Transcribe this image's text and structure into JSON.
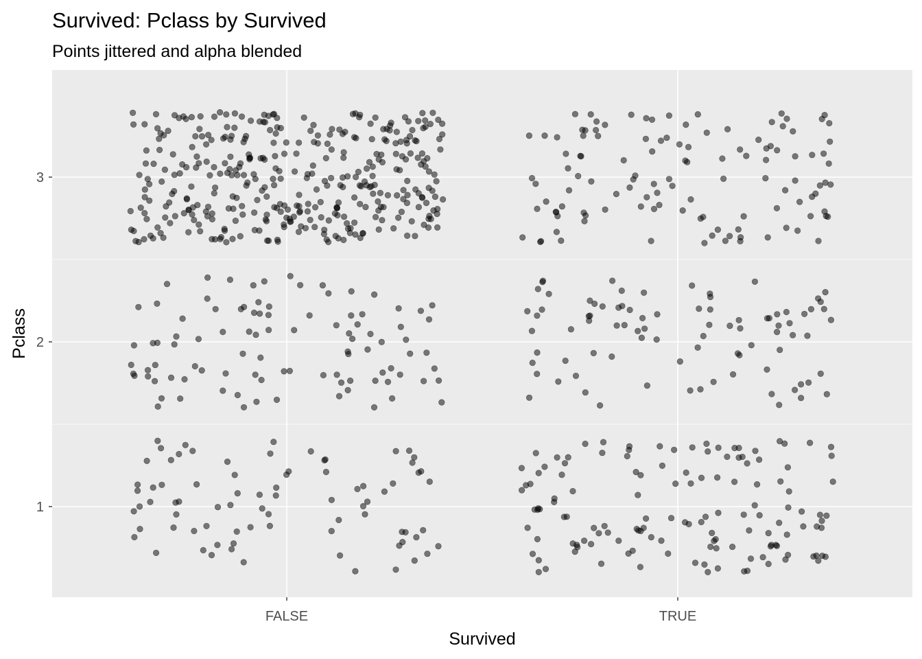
{
  "chart_data": {
    "type": "scatter",
    "title": "Survived: Pclass by Survived",
    "subtitle": "Points jittered and alpha blended",
    "xlabel": "Survived",
    "ylabel": "Pclass",
    "x_categories": [
      "FALSE",
      "TRUE"
    ],
    "y_ticks": [
      1,
      2,
      3
    ],
    "y_tick_labels": [
      "1",
      "2",
      "3"
    ],
    "ylim": [
      0.45,
      3.65
    ],
    "jitter_width": 0.4,
    "jitter_height": 0.4,
    "grid": true,
    "panel_background": "#EBEBEB",
    "grid_color": "#FFFFFF",
    "point_color": "#000000",
    "point_alpha": 0.5,
    "groups": [
      {
        "x": "FALSE",
        "y": 1,
        "count": 80
      },
      {
        "x": "FALSE",
        "y": 2,
        "count": 97
      },
      {
        "x": "FALSE",
        "y": 3,
        "count": 372
      },
      {
        "x": "TRUE",
        "y": 1,
        "count": 136
      },
      {
        "x": "TRUE",
        "y": 2,
        "count": 87
      },
      {
        "x": "TRUE",
        "y": 3,
        "count": 119
      }
    ]
  }
}
